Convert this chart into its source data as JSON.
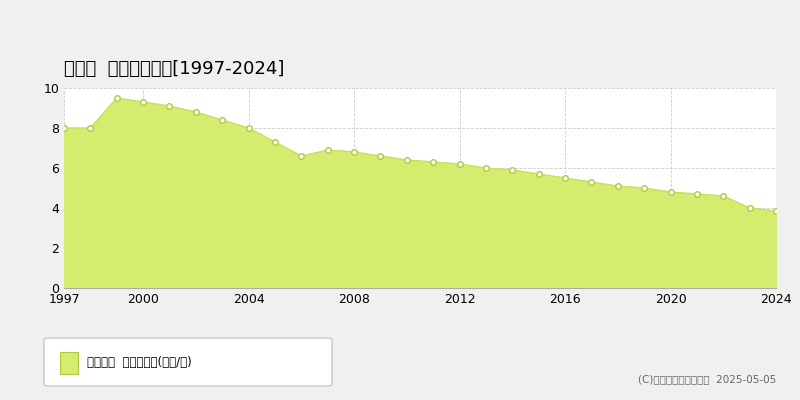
{
  "title": "蔵王町  基準地価推移[1997-2024]",
  "years": [
    1997,
    1998,
    1999,
    2000,
    2001,
    2002,
    2003,
    2004,
    2005,
    2006,
    2007,
    2008,
    2009,
    2010,
    2011,
    2012,
    2013,
    2014,
    2015,
    2016,
    2017,
    2018,
    2019,
    2020,
    2021,
    2022,
    2023,
    2024
  ],
  "values": [
    8.0,
    8.0,
    9.5,
    9.3,
    9.1,
    8.8,
    8.4,
    8.0,
    7.3,
    6.6,
    6.9,
    6.8,
    6.6,
    6.4,
    6.3,
    6.2,
    6.0,
    5.9,
    5.7,
    5.5,
    5.3,
    5.1,
    5.0,
    4.8,
    4.7,
    4.6,
    4.0,
    3.85
  ],
  "fill_color": "#d4ed6e",
  "line_color": "#c8e060",
  "marker_color": "#ffffff",
  "marker_edge_color": "#b0c840",
  "background_color": "#f0f0f0",
  "plot_bg_color": "#ffffff",
  "grid_color": "#cccccc",
  "title_fontsize": 13,
  "axis_fontsize": 9,
  "ylim": [
    0,
    10
  ],
  "yticks": [
    0,
    2,
    4,
    6,
    8,
    10
  ],
  "xticks": [
    1997,
    2000,
    2004,
    2008,
    2012,
    2016,
    2020,
    2024
  ],
  "legend_label": "基準地価  平均坪単価(万円/坪)",
  "copyright_text": "(C)土地価格ドットコム  2025-05-05"
}
